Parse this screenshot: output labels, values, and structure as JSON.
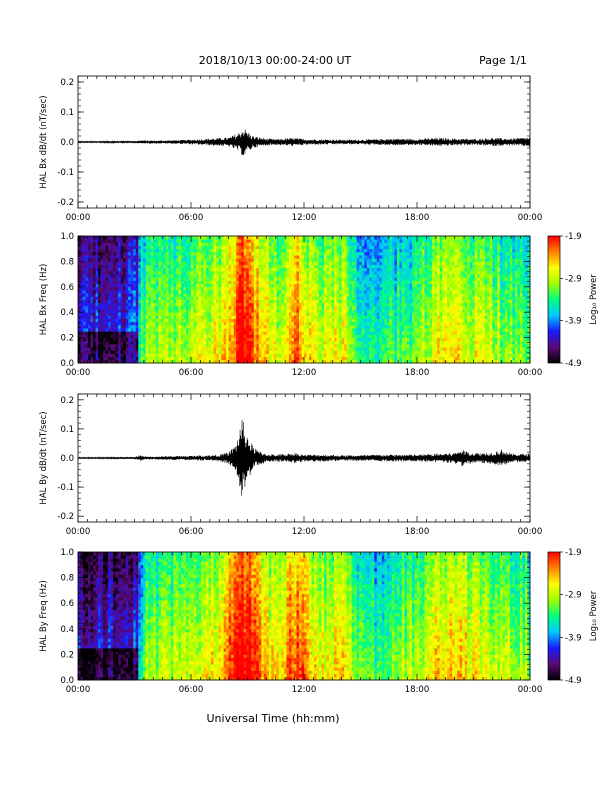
{
  "header": {
    "title": "2018/10/13  00:00-24:00 UT",
    "page": "Page 1/1"
  },
  "x_axis": {
    "label": "Universal Time (hh:mm)",
    "ticks": [
      "00:00",
      "06:00",
      "12:00",
      "18:00",
      "00:00"
    ],
    "tick_hours": [
      0,
      6,
      12,
      18,
      24
    ],
    "range_hours": [
      0,
      24
    ]
  },
  "colorbar": {
    "label": "Log₁₀ Power",
    "ticks": [
      "-1.9",
      "-2.9",
      "-3.9",
      "-4.9"
    ],
    "tick_values": [
      -1.9,
      -2.9,
      -3.9,
      -4.9
    ],
    "range": [
      -4.9,
      -1.9
    ]
  },
  "colors": {
    "colormap": [
      "#000000",
      "#5a0a78",
      "#1a1aff",
      "#00c8ff",
      "#00ff80",
      "#a0ff00",
      "#ffff00",
      "#ff8000",
      "#ff0000"
    ],
    "trace": "#000000"
  },
  "chart_data": [
    {
      "type": "line",
      "id": "bx_dbdt",
      "ylabel": "HAL Bx dB/dt (nT/sec)",
      "ylim": [
        -0.22,
        0.22
      ],
      "yticks": [
        0.2,
        0.1,
        0.0,
        -0.1,
        -0.2
      ],
      "ytick_labels": [
        "0.2",
        "0.1",
        "0.0",
        "-0.1",
        "-0.2"
      ],
      "envelope": {
        "x": [
          0,
          1,
          2,
          3,
          3.3,
          4,
          5,
          6,
          7,
          8,
          8.5,
          8.8,
          9.0,
          9.3,
          10,
          10.5,
          11,
          11.5,
          12,
          13,
          14,
          15,
          16,
          17,
          18,
          19,
          20,
          21,
          22,
          23,
          24
        ],
        "amplitude": [
          0.002,
          0.002,
          0.003,
          0.003,
          0.006,
          0.005,
          0.006,
          0.008,
          0.012,
          0.015,
          0.03,
          0.05,
          0.035,
          0.02,
          0.012,
          0.01,
          0.012,
          0.014,
          0.01,
          0.009,
          0.008,
          0.008,
          0.01,
          0.012,
          0.01,
          0.014,
          0.012,
          0.01,
          0.014,
          0.012,
          0.016
        ]
      }
    },
    {
      "type": "heatmap",
      "id": "bx_spectrogram",
      "ylabel": "HAL Bx Freq (Hz)",
      "ylim": [
        0,
        1.0
      ],
      "yticks": [
        1.0,
        0.8,
        0.6,
        0.4,
        0.2,
        0.0
      ],
      "ytick_labels": [
        "1.0",
        "0.8",
        "0.6",
        "0.4",
        "0.2",
        "0.0"
      ],
      "activity_profile": {
        "x": [
          0,
          2,
          3.2,
          3.5,
          4.5,
          5.5,
          6.5,
          7.5,
          8.2,
          8.7,
          9.2,
          10,
          10.5,
          11,
          11.6,
          12.3,
          13,
          13.8,
          14.3,
          15,
          16,
          17,
          18,
          19,
          20,
          21,
          22,
          23,
          24
        ],
        "log_power": [
          -4.4,
          -4.3,
          -4.2,
          -3.4,
          -3.3,
          -3.2,
          -3.1,
          -2.9,
          -2.5,
          -2.0,
          -2.3,
          -2.9,
          -3.1,
          -2.8,
          -2.4,
          -2.9,
          -3.1,
          -2.9,
          -3.0,
          -3.6,
          -3.7,
          -3.5,
          -3.4,
          -3.0,
          -2.9,
          -3.0,
          -3.2,
          -3.3,
          -3.4
        ]
      }
    },
    {
      "type": "line",
      "id": "by_dbdt",
      "ylabel": "HAL By dB/dt (nT/sec)",
      "ylim": [
        -0.22,
        0.22
      ],
      "yticks": [
        0.2,
        0.1,
        0.0,
        -0.1,
        -0.2
      ],
      "ytick_labels": [
        "0.2",
        "0.1",
        "0.0",
        "-0.1",
        "-0.2"
      ],
      "envelope": {
        "x": [
          0,
          1,
          2,
          3,
          3.3,
          3.5,
          4,
          5,
          6,
          7,
          7.5,
          8,
          8.4,
          8.7,
          9.0,
          9.3,
          9.6,
          10,
          10.5,
          11,
          11.5,
          12,
          13,
          14,
          15,
          16,
          17,
          18,
          19,
          20,
          20.3,
          21,
          22,
          22.5,
          23,
          24
        ],
        "amplitude": [
          0.002,
          0.002,
          0.003,
          0.004,
          0.01,
          0.006,
          0.005,
          0.007,
          0.008,
          0.01,
          0.012,
          0.02,
          0.05,
          0.14,
          0.08,
          0.04,
          0.025,
          0.015,
          0.012,
          0.015,
          0.018,
          0.012,
          0.012,
          0.01,
          0.01,
          0.012,
          0.012,
          0.012,
          0.015,
          0.018,
          0.03,
          0.018,
          0.02,
          0.03,
          0.015,
          0.015
        ]
      }
    },
    {
      "type": "heatmap",
      "id": "by_spectrogram",
      "ylabel": "HAL By Freq (Hz)",
      "ylim": [
        0,
        1.0
      ],
      "yticks": [
        1.0,
        0.8,
        0.6,
        0.4,
        0.2,
        0.0
      ],
      "ytick_labels": [
        "1.0",
        "0.8",
        "0.6",
        "0.4",
        "0.2",
        "0.0"
      ],
      "activity_profile": {
        "x": [
          0,
          2,
          3.2,
          3.5,
          4.5,
          5.5,
          6.5,
          7.5,
          8.2,
          8.7,
          9.2,
          10,
          10.5,
          11,
          11.6,
          12.3,
          13,
          13.8,
          14.3,
          15,
          16,
          17,
          18,
          19,
          20,
          21,
          22,
          23,
          24
        ],
        "log_power": [
          -4.5,
          -4.4,
          -4.3,
          -3.3,
          -3.2,
          -3.1,
          -3.0,
          -2.8,
          -2.3,
          -1.9,
          -2.2,
          -2.8,
          -3.0,
          -2.7,
          -2.2,
          -2.8,
          -3.0,
          -2.8,
          -2.9,
          -3.5,
          -3.6,
          -3.3,
          -3.2,
          -2.9,
          -2.8,
          -2.9,
          -3.1,
          -3.2,
          -3.3
        ]
      }
    }
  ]
}
